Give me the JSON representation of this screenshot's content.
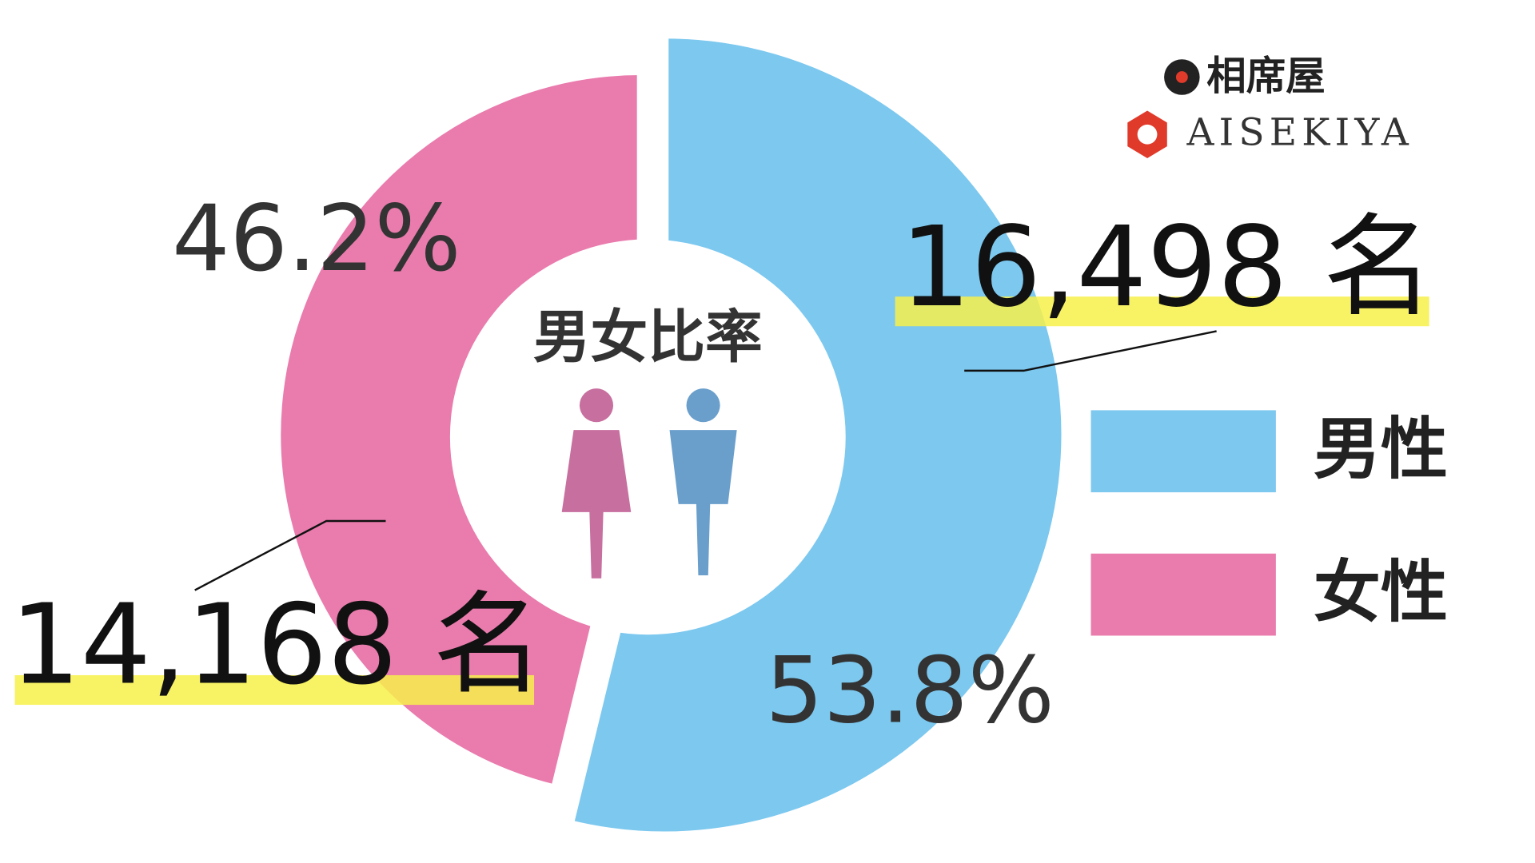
{
  "chart_data": {
    "type": "pie",
    "donut": true,
    "center_label": "男女比率",
    "categories": [
      "男性",
      "女性"
    ],
    "values": [
      53.8,
      46.2
    ],
    "value_labels": [
      "53.8%",
      "46.2%"
    ],
    "counts": [
      16498,
      14168
    ],
    "count_labels": [
      "16,498 名",
      "14,168 名"
    ],
    "colors": [
      "#7cc8ef",
      "#ea7bad"
    ]
  },
  "logo": {
    "kanji": "相席屋",
    "roman": "AISEKIYA"
  }
}
